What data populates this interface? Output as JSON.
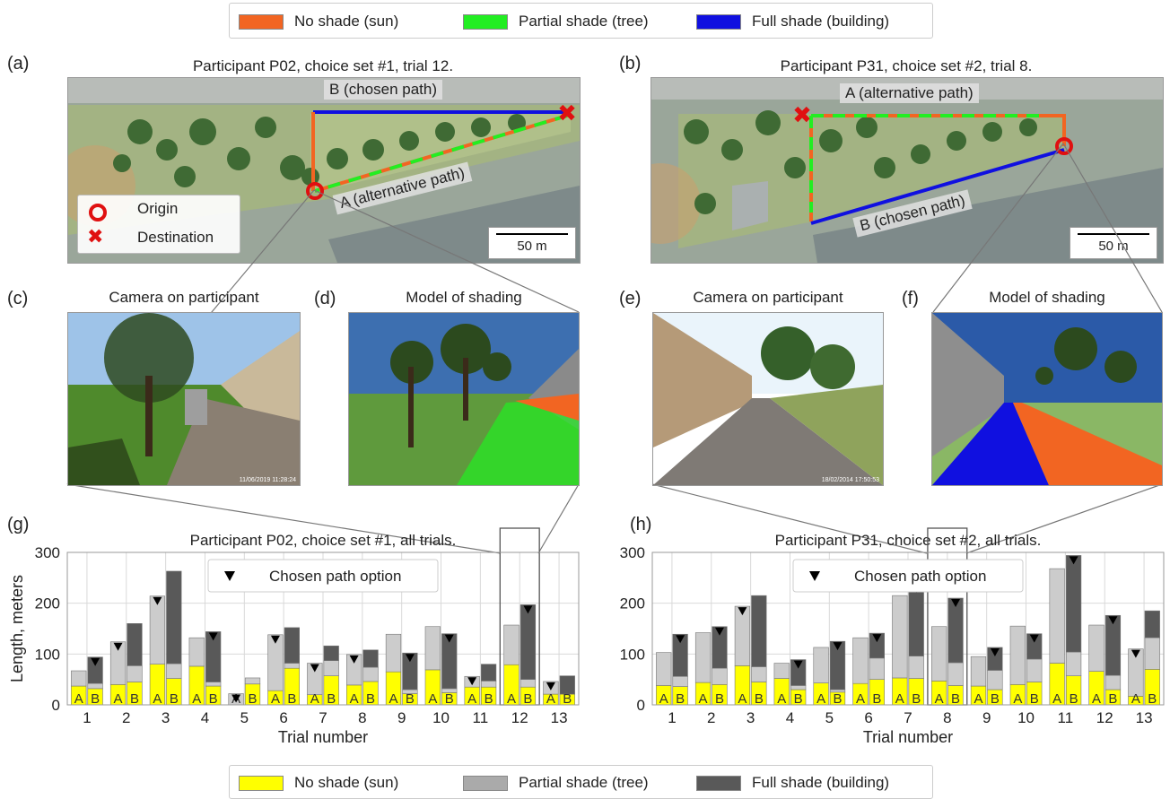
{
  "top_legend": {
    "items": [
      {
        "label": "No shade (sun)",
        "color": "#f26522"
      },
      {
        "label": "Partial shade (tree)",
        "color": "#22ee22"
      },
      {
        "label": "Full shade (building)",
        "color": "#1010e0"
      }
    ]
  },
  "panels": {
    "a": {
      "letter": "(a)",
      "title": "Participant P02, choice set #1, trial 12.",
      "path_b": "B (chosen path)",
      "path_a": "A (alternative path)",
      "legend_origin": "Origin",
      "legend_destination": "Destination",
      "scale": "50 m"
    },
    "b": {
      "letter": "(b)",
      "title": "Participant P31, choice set #2, trial 8.",
      "path_a": "A (alternative path)",
      "path_b": "B (chosen path)",
      "scale": "50 m"
    },
    "c": {
      "letter": "(c)",
      "title": "Camera on participant",
      "timestamp": "11/06/2019 11:28:24"
    },
    "d": {
      "letter": "(d)",
      "title": "Model of shading"
    },
    "e": {
      "letter": "(e)",
      "title": "Camera on participant",
      "timestamp": "18/02/2014 17:50:53"
    },
    "f": {
      "letter": "(f)",
      "title": "Model of shading"
    },
    "g": {
      "letter": "(g)"
    },
    "h": {
      "letter": "(h)"
    }
  },
  "bottom_legend": {
    "items": [
      {
        "label": "No shade (sun)",
        "color": "#ffff00"
      },
      {
        "label": "Partial shade (tree)",
        "color": "#aaaaaa"
      },
      {
        "label": "Full shade (building)",
        "color": "#595959"
      }
    ]
  },
  "chart_data": [
    {
      "type": "bar",
      "title": "Participant P02, choice set #1, all trials.",
      "xlabel": "Trial number",
      "ylabel": "Length, meters",
      "ylim": [
        0,
        300
      ],
      "yticks": [
        0,
        100,
        200,
        300
      ],
      "grid": true,
      "legend": {
        "label": "Chosen path option",
        "placement": "top-center"
      },
      "highlighted_trial": 12,
      "bar_labels": [
        "A",
        "B"
      ],
      "categories": [
        "1",
        "2",
        "3",
        "4",
        "5",
        "6",
        "7",
        "8",
        "9",
        "10",
        "11",
        "12",
        "13"
      ],
      "series_stack": [
        "No shade (sun)",
        "Partial shade (tree)",
        "Full shade (building)"
      ],
      "colors": {
        "no_shade": "#ffff00",
        "partial": "#cccccc",
        "full": "#595959"
      },
      "trials": [
        {
          "trial": 1,
          "chosen": "B",
          "A": {
            "no_shade": 37,
            "partial": 30,
            "full": 0
          },
          "B": {
            "no_shade": 32,
            "partial": 10,
            "full": 52
          }
        },
        {
          "trial": 2,
          "chosen": "A",
          "A": {
            "no_shade": 40,
            "partial": 84,
            "full": 0
          },
          "B": {
            "no_shade": 45,
            "partial": 32,
            "full": 83
          }
        },
        {
          "trial": 3,
          "chosen": "A",
          "A": {
            "no_shade": 80,
            "partial": 134,
            "full": 0
          },
          "B": {
            "no_shade": 52,
            "partial": 29,
            "full": 182
          }
        },
        {
          "trial": 4,
          "chosen": "B",
          "A": {
            "no_shade": 76,
            "partial": 56,
            "full": 0
          },
          "B": {
            "no_shade": 37,
            "partial": 8,
            "full": 99
          }
        },
        {
          "trial": 5,
          "chosen": "A",
          "A": {
            "no_shade": 0,
            "partial": 22,
            "full": 0
          },
          "B": {
            "no_shade": 41,
            "partial": 12,
            "full": 0
          }
        },
        {
          "trial": 6,
          "chosen": "A",
          "A": {
            "no_shade": 28,
            "partial": 110,
            "full": 0
          },
          "B": {
            "no_shade": 72,
            "partial": 10,
            "full": 70
          }
        },
        {
          "trial": 7,
          "chosen": "A",
          "A": {
            "no_shade": 20,
            "partial": 62,
            "full": 0
          },
          "B": {
            "no_shade": 57,
            "partial": 30,
            "full": 29
          }
        },
        {
          "trial": 8,
          "chosen": "A",
          "A": {
            "no_shade": 39,
            "partial": 60,
            "full": 0
          },
          "B": {
            "no_shade": 46,
            "partial": 28,
            "full": 34
          }
        },
        {
          "trial": 9,
          "chosen": "B",
          "A": {
            "no_shade": 65,
            "partial": 74,
            "full": 0
          },
          "B": {
            "no_shade": 22,
            "partial": 8,
            "full": 72
          }
        },
        {
          "trial": 10,
          "chosen": "B",
          "A": {
            "no_shade": 69,
            "partial": 85,
            "full": 0
          },
          "B": {
            "no_shade": 24,
            "partial": 8,
            "full": 108
          }
        },
        {
          "trial": 11,
          "chosen": "A",
          "A": {
            "no_shade": 35,
            "partial": 21,
            "full": 0
          },
          "B": {
            "no_shade": 35,
            "partial": 12,
            "full": 33
          }
        },
        {
          "trial": 12,
          "chosen": "B",
          "A": {
            "no_shade": 79,
            "partial": 78,
            "full": 0
          },
          "B": {
            "no_shade": 35,
            "partial": 15,
            "full": 147
          }
        },
        {
          "trial": 13,
          "chosen": "A",
          "A": {
            "no_shade": 21,
            "partial": 25,
            "full": 0
          },
          "B": {
            "no_shade": 21,
            "partial": 0,
            "full": 36
          }
        }
      ]
    },
    {
      "type": "bar",
      "title": "Participant P31, choice set #2, all trials.",
      "xlabel": "Trial number",
      "ylabel": "",
      "ylim": [
        0,
        300
      ],
      "yticks": [
        0,
        100,
        200,
        300
      ],
      "grid": true,
      "legend": {
        "label": "Chosen path option",
        "placement": "top-center"
      },
      "highlighted_trial": 8,
      "bar_labels": [
        "A",
        "B"
      ],
      "categories": [
        "1",
        "2",
        "3",
        "4",
        "5",
        "6",
        "7",
        "8",
        "9",
        "10",
        "11",
        "12",
        "13"
      ],
      "series_stack": [
        "No shade (sun)",
        "Partial shade (tree)",
        "Full shade (building)"
      ],
      "colors": {
        "no_shade": "#ffff00",
        "partial": "#cccccc",
        "full": "#595959"
      },
      "trials": [
        {
          "trial": 1,
          "chosen": "B",
          "A": {
            "no_shade": 38,
            "partial": 65,
            "full": 0
          },
          "B": {
            "no_shade": 36,
            "partial": 20,
            "full": 83
          }
        },
        {
          "trial": 2,
          "chosen": "B",
          "A": {
            "no_shade": 44,
            "partial": 98,
            "full": 0
          },
          "B": {
            "no_shade": 40,
            "partial": 32,
            "full": 82
          }
        },
        {
          "trial": 3,
          "chosen": "A",
          "A": {
            "no_shade": 77,
            "partial": 117,
            "full": 0
          },
          "B": {
            "no_shade": 45,
            "partial": 30,
            "full": 140
          }
        },
        {
          "trial": 4,
          "chosen": "B",
          "A": {
            "no_shade": 52,
            "partial": 30,
            "full": 0
          },
          "B": {
            "no_shade": 30,
            "partial": 8,
            "full": 51
          }
        },
        {
          "trial": 5,
          "chosen": "B",
          "A": {
            "no_shade": 43,
            "partial": 70,
            "full": 0
          },
          "B": {
            "no_shade": 25,
            "partial": 5,
            "full": 95
          }
        },
        {
          "trial": 6,
          "chosen": "B",
          "A": {
            "no_shade": 42,
            "partial": 90,
            "full": 0
          },
          "B": {
            "no_shade": 50,
            "partial": 42,
            "full": 49
          }
        },
        {
          "trial": 7,
          "chosen": "B",
          "A": {
            "no_shade": 53,
            "partial": 162,
            "full": 0
          },
          "B": {
            "no_shade": 52,
            "partial": 44,
            "full": 142
          }
        },
        {
          "trial": 8,
          "chosen": "B",
          "A": {
            "no_shade": 47,
            "partial": 107,
            "full": 0
          },
          "B": {
            "no_shade": 38,
            "partial": 45,
            "full": 127
          }
        },
        {
          "trial": 9,
          "chosen": "B",
          "A": {
            "no_shade": 37,
            "partial": 58,
            "full": 0
          },
          "B": {
            "no_shade": 30,
            "partial": 38,
            "full": 45
          }
        },
        {
          "trial": 10,
          "chosen": "B",
          "A": {
            "no_shade": 40,
            "partial": 115,
            "full": 0
          },
          "B": {
            "no_shade": 45,
            "partial": 45,
            "full": 50
          }
        },
        {
          "trial": 11,
          "chosen": "B",
          "A": {
            "no_shade": 82,
            "partial": 186,
            "full": 0
          },
          "B": {
            "no_shade": 57,
            "partial": 47,
            "full": 190
          }
        },
        {
          "trial": 12,
          "chosen": "B",
          "A": {
            "no_shade": 66,
            "partial": 91,
            "full": 0
          },
          "B": {
            "no_shade": 30,
            "partial": 28,
            "full": 118
          }
        },
        {
          "trial": 13,
          "chosen": "A",
          "A": {
            "no_shade": 17,
            "partial": 93,
            "full": 0
          },
          "B": {
            "no_shade": 70,
            "partial": 62,
            "full": 53
          }
        }
      ]
    }
  ]
}
